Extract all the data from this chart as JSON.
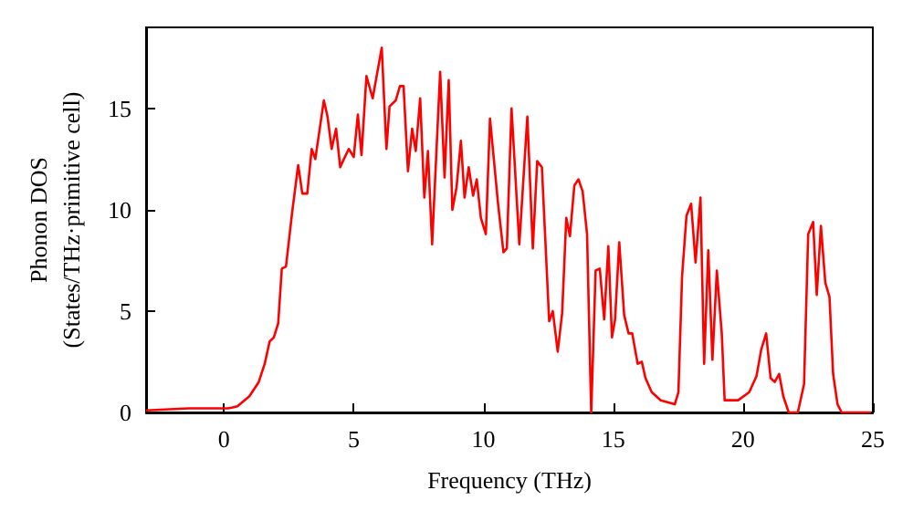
{
  "chart_data": {
    "type": "line",
    "xlabel": "Frequency (THz)",
    "ylabel": "Phonon DOS\n(States/THz·primitive cell)",
    "xlim": [
      -3,
      25
    ],
    "ylim": [
      0,
      19
    ],
    "xticks": [
      0,
      5,
      10,
      15,
      20,
      25
    ],
    "yticks": [
      0,
      5,
      10,
      15
    ],
    "grid": false,
    "marker": "none",
    "line_style": "solid",
    "series": [
      {
        "color": "#ff0000",
        "x": [
          -3,
          -1.36,
          0.16,
          0.52,
          0.98,
          1.34,
          1.57,
          1.76,
          1.92,
          2.09,
          2.23,
          2.39,
          2.63,
          2.86,
          3.02,
          3.21,
          3.38,
          3.52,
          3.85,
          3.99,
          4.15,
          4.32,
          4.48,
          4.62,
          4.81,
          5.0,
          5.16,
          5.3,
          5.49,
          5.73,
          6.08,
          6.26,
          6.38,
          6.62,
          6.78,
          6.92,
          7.09,
          7.25,
          7.39,
          7.56,
          7.72,
          7.86,
          8.02,
          8.33,
          8.5,
          8.66,
          8.8,
          8.96,
          9.13,
          9.27,
          9.43,
          9.6,
          9.74,
          9.9,
          10.09,
          10.25,
          10.56,
          10.77,
          10.9,
          11.08,
          11.38,
          11.69,
          11.9,
          12.07,
          12.25,
          12.53,
          12.67,
          12.86,
          13.03,
          13.19,
          13.33,
          13.5,
          13.66,
          13.82,
          13.99,
          14.15,
          14.32,
          14.48,
          14.65,
          14.81,
          14.95,
          15.07,
          15.23,
          15.42,
          15.59,
          15.73,
          15.94,
          16.1,
          16.24,
          16.48,
          16.83,
          17.37,
          17.51,
          17.65,
          17.82,
          18.0,
          18.17,
          18.36,
          18.5,
          18.66,
          18.82,
          18.99,
          19.18,
          19.29,
          19.81,
          20.24,
          20.52,
          20.7,
          20.89,
          21.06,
          21.22,
          21.39,
          21.55,
          21.76,
          22.11,
          22.35,
          22.51,
          22.7,
          22.84,
          23.0,
          23.17,
          23.33,
          23.47,
          23.64,
          23.8,
          24.93
        ],
        "values": [
          0.1,
          0.2,
          0.2,
          0.3,
          0.8,
          1.5,
          2.4,
          3.5,
          3.7,
          4.4,
          7.1,
          7.2,
          9.9,
          12.2,
          10.8,
          10.8,
          13.0,
          12.5,
          15.4,
          14.6,
          13.0,
          14.0,
          12.1,
          12.5,
          13.0,
          12.6,
          14.7,
          12.7,
          16.6,
          15.5,
          18.0,
          13.0,
          15.1,
          15.4,
          16.1,
          16.1,
          11.9,
          14.0,
          12.9,
          15.5,
          10.6,
          12.9,
          8.3,
          16.8,
          11.6,
          16.4,
          10.0,
          11.1,
          13.4,
          10.6,
          12.1,
          10.7,
          11.5,
          9.6,
          8.8,
          14.5,
          10.3,
          7.9,
          8.1,
          15.0,
          8.3,
          14.6,
          8.1,
          12.4,
          12.1,
          4.5,
          5.0,
          3.0,
          4.9,
          9.6,
          8.7,
          11.2,
          11.5,
          10.9,
          8.8,
          0,
          7.0,
          7.1,
          4.6,
          8.2,
          3.7,
          4.6,
          8.4,
          4.8,
          3.9,
          3.9,
          2.4,
          2.5,
          1.7,
          1.0,
          0.6,
          0.4,
          1.0,
          6.7,
          9.7,
          10.3,
          7.4,
          10.6,
          2.4,
          8.0,
          2.6,
          7.0,
          3.9,
          0.6,
          0.6,
          1.0,
          1.8,
          3.1,
          3.9,
          1.7,
          1.5,
          1.9,
          0.8,
          0,
          0,
          1.4,
          8.8,
          9.4,
          5.8,
          9.2,
          6.4,
          5.7,
          1.9,
          0.4,
          0,
          0
        ]
      }
    ]
  }
}
